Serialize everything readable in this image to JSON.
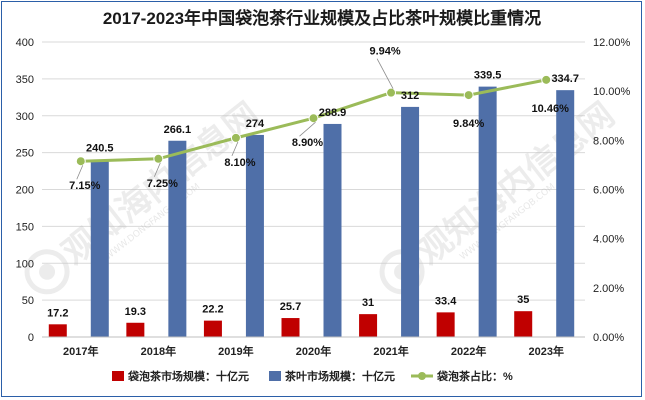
{
  "chart_data": {
    "type": "bar",
    "title": "2017-2023年中国袋泡茶行业规模及占比茶叶规模比重情况",
    "categories": [
      "2017年",
      "2018年",
      "2019年",
      "2020年",
      "2021年",
      "2022年",
      "2023年"
    ],
    "series": [
      {
        "name": "袋泡茶市场规模：十亿元",
        "kind": "bar",
        "axis": "left",
        "color": "#c00000",
        "values": [
          17.2,
          19.3,
          22.2,
          25.7,
          31,
          33.4,
          35
        ],
        "labels": [
          "17.2",
          "19.3",
          "22.2",
          "25.7",
          "31",
          "33.4",
          "35"
        ]
      },
      {
        "name": "茶叶市场规模：十亿元",
        "kind": "bar",
        "axis": "left",
        "color": "#4f6fa8",
        "values": [
          240.5,
          266.1,
          274,
          288.9,
          312,
          339.5,
          334.7
        ],
        "labels": [
          "240.5",
          "266.1",
          "274",
          "288.9",
          "312",
          "339.5",
          "334.7"
        ]
      },
      {
        "name": "袋泡茶占比：%",
        "kind": "line",
        "axis": "right",
        "color": "#9bbb59",
        "values": [
          7.15,
          7.25,
          8.1,
          8.9,
          9.94,
          9.84,
          10.46
        ],
        "labels": [
          "7.15%",
          "7.25%",
          "8.10%",
          "8.90%",
          "9.94%",
          "9.84%",
          "10.46%"
        ]
      }
    ],
    "y_left": {
      "min": 0,
      "max": 400,
      "step": 50,
      "ticks": [
        "0",
        "50",
        "100",
        "150",
        "200",
        "250",
        "300",
        "350",
        "400"
      ]
    },
    "y_right": {
      "min": 0,
      "max": 12,
      "step": 2,
      "ticks": [
        "0.00%",
        "2.00%",
        "4.00%",
        "6.00%",
        "8.00%",
        "10.00%",
        "12.00%"
      ]
    },
    "grid": true,
    "legend_position": "bottom"
  },
  "watermark": {
    "text": "观知海内信息网",
    "url": "WWW.DONGFANGQB.COM"
  }
}
